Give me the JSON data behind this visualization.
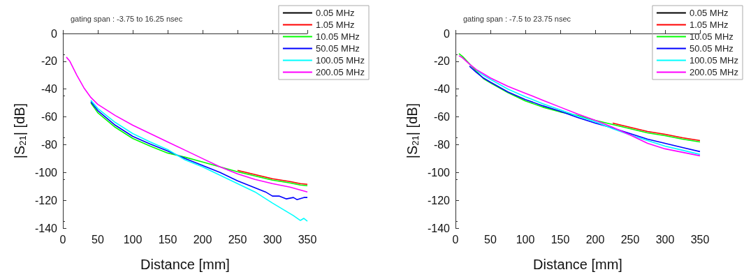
{
  "chart_data": [
    {
      "type": "line",
      "title": "gating span : -3.75 to 16.25 nsec",
      "xlabel": "Distance [mm]",
      "ylabel": "|S$_{21}$| [dB]",
      "xlim": [
        0,
        350
      ],
      "xticks": [
        0,
        50,
        100,
        150,
        200,
        250,
        300,
        350
      ],
      "ylim": [
        -140,
        0
      ],
      "yticks": [
        -140,
        -120,
        -100,
        -80,
        -60,
        -40,
        -20,
        0
      ],
      "grid": false,
      "legend": "top right",
      "marker": "none",
      "line_style": "solid",
      "series": [
        {
          "name": "0.05 MHz",
          "color": "#000000"
        },
        {
          "name": "1.05 MHz",
          "color": "#ff0000",
          "x": [
            250,
            275,
            300,
            325,
            340,
            350
          ],
          "values": [
            -98.5,
            -101.5,
            -104.5,
            -106.5,
            -108,
            -108.5
          ]
        },
        {
          "name": "10.05 MHz",
          "color": "#00ff00",
          "x": [
            40,
            50,
            75,
            100,
            125,
            150,
            175,
            200,
            225,
            250,
            275,
            300,
            325,
            340,
            350
          ],
          "values": [
            -50,
            -57,
            -67.5,
            -75.5,
            -81,
            -86,
            -89,
            -92.5,
            -96,
            -99.5,
            -102.5,
            -105.5,
            -107.5,
            -109,
            -109.5
          ]
        },
        {
          "name": "50.05 MHz",
          "color": "#0000ff",
          "x": [
            40,
            50,
            75,
            100,
            125,
            150,
            175,
            200,
            225,
            250,
            275,
            290,
            300,
            310,
            320,
            330,
            335,
            345,
            350
          ],
          "values": [
            -49,
            -55.5,
            -66,
            -74,
            -79.5,
            -84.5,
            -90,
            -95,
            -100,
            -106,
            -111,
            -114,
            -117,
            -117,
            -119,
            -118,
            -119.5,
            -118,
            -118
          ]
        },
        {
          "name": "100.05 MHz",
          "color": "#00ffff",
          "x": [
            40,
            50,
            75,
            100,
            125,
            150,
            175,
            200,
            225,
            250,
            275,
            300,
            320,
            330,
            340,
            345,
            350
          ],
          "values": [
            -48,
            -54,
            -64,
            -72,
            -78,
            -83.5,
            -91,
            -96,
            -102,
            -108,
            -114,
            -122,
            -128,
            -131,
            -134.5,
            -133,
            -135
          ]
        },
        {
          "name": "200.05 MHz",
          "color": "#ff00ff",
          "x": [
            5,
            10,
            20,
            30,
            40,
            50,
            75,
            100,
            125,
            150,
            175,
            200,
            225,
            240,
            250,
            275,
            300,
            325,
            350
          ],
          "values": [
            -17,
            -20,
            -30,
            -39,
            -46,
            -51,
            -59,
            -66,
            -72,
            -78,
            -84,
            -90,
            -96,
            -99,
            -101,
            -105,
            -108,
            -110.5,
            -114
          ]
        }
      ]
    },
    {
      "type": "line",
      "title": "gating span : -7.5 to 23.75 nsec",
      "xlabel": "Distance [mm]",
      "ylabel": "|S$_{21}$| [dB]",
      "xlim": [
        0,
        350
      ],
      "xticks": [
        0,
        50,
        100,
        150,
        200,
        250,
        300,
        350
      ],
      "ylim": [
        -140,
        0
      ],
      "yticks": [
        -140,
        -120,
        -100,
        -80,
        -60,
        -40,
        -20,
        0
      ],
      "grid": false,
      "legend": "top right",
      "marker": "none",
      "line_style": "solid",
      "series": [
        {
          "name": "0.05 MHz",
          "color": "#000000"
        },
        {
          "name": "1.05 MHz",
          "color": "#ff0000",
          "x": [
            225,
            250,
            275,
            300,
            325,
            350
          ],
          "values": [
            -64.5,
            -67.5,
            -70.5,
            -72.5,
            -75,
            -77
          ]
        },
        {
          "name": "10.05 MHz",
          "color": "#00ff00",
          "x": [
            5,
            10,
            40,
            50,
            75,
            100,
            125,
            150,
            175,
            200,
            225,
            250,
            275,
            300,
            325,
            350
          ],
          "values": [
            -14.5,
            -16.5,
            -32.5,
            -35.5,
            -42.5,
            -48.5,
            -53,
            -56.5,
            -59,
            -62.5,
            -65.5,
            -68.5,
            -71.5,
            -73.5,
            -76,
            -78
          ]
        },
        {
          "name": "50.05 MHz",
          "color": "#0000ff",
          "x": [
            20,
            30,
            40,
            50,
            75,
            100,
            125,
            150,
            175,
            200,
            225,
            250,
            275,
            300,
            325,
            350
          ],
          "values": [
            -23.5,
            -28,
            -32,
            -35,
            -42,
            -47.5,
            -52,
            -56,
            -60.5,
            -64.5,
            -68,
            -72,
            -76,
            -79,
            -82,
            -85
          ]
        },
        {
          "name": "100.05 MHz",
          "color": "#00ffff",
          "x": [
            30,
            40,
            50,
            75,
            100,
            125,
            150,
            175,
            200,
            225,
            250,
            275,
            300,
            325,
            350
          ],
          "values": [
            -26.5,
            -30,
            -33,
            -40,
            -45.5,
            -50.5,
            -55,
            -59.5,
            -63.5,
            -68.5,
            -73,
            -77,
            -81,
            -84,
            -87
          ]
        },
        {
          "name": "200.05 MHz",
          "color": "#ff00ff",
          "x": [
            5,
            10,
            20,
            30,
            40,
            50,
            75,
            100,
            125,
            150,
            175,
            200,
            225,
            250,
            275,
            300,
            325,
            350
          ],
          "values": [
            -16,
            -17.5,
            -22,
            -26,
            -29,
            -32,
            -38,
            -43,
            -48,
            -53,
            -58,
            -62.5,
            -67.5,
            -73,
            -79,
            -83,
            -85.5,
            -88
          ]
        }
      ]
    }
  ]
}
